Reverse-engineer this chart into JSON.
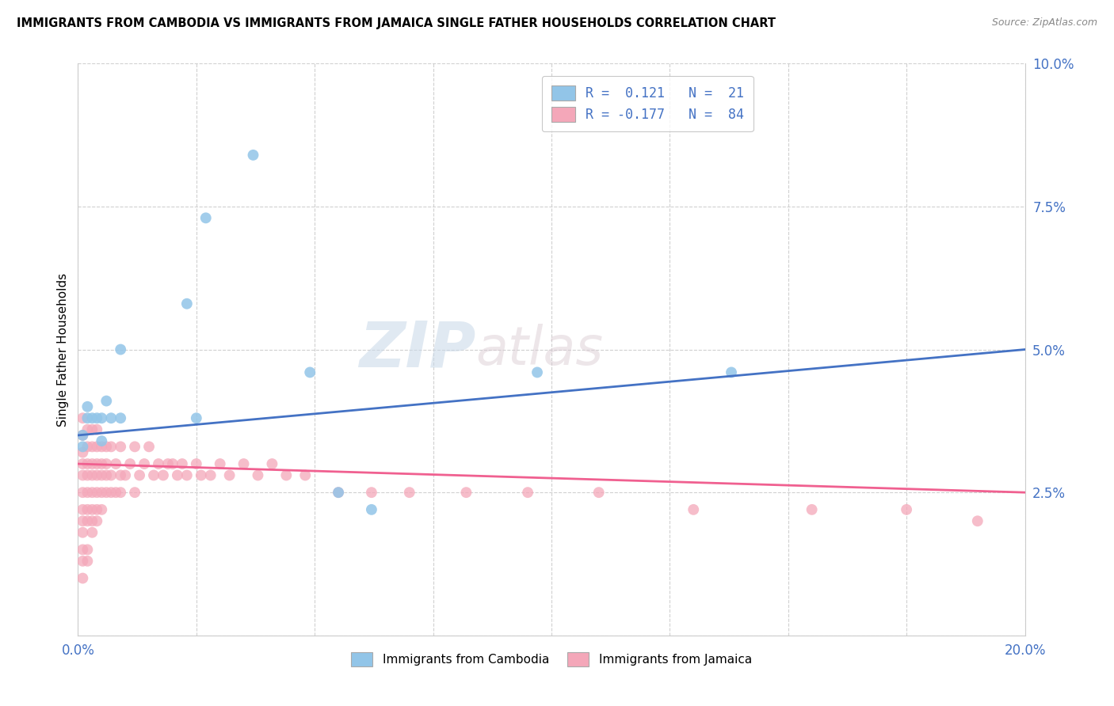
{
  "title": "IMMIGRANTS FROM CAMBODIA VS IMMIGRANTS FROM JAMAICA SINGLE FATHER HOUSEHOLDS CORRELATION CHART",
  "source": "Source: ZipAtlas.com",
  "ylabel": "Single Father Households",
  "xlim": [
    0.0,
    0.2
  ],
  "ylim": [
    0.0,
    0.1
  ],
  "xticks": [
    0.0,
    0.025,
    0.05,
    0.075,
    0.1,
    0.125,
    0.15,
    0.175,
    0.2
  ],
  "yticks": [
    0.0,
    0.025,
    0.05,
    0.075,
    0.1
  ],
  "color_cambodia": "#92c5e8",
  "color_jamaica": "#f4a7b9",
  "trendline_cambodia": "#4472c4",
  "trendline_jamaica": "#f06090",
  "watermark_zip": "ZIP",
  "watermark_atlas": "atlas",
  "background_color": "#ffffff",
  "grid_color": "#d0d0d0",
  "fig_width": 14.06,
  "fig_height": 8.92,
  "cambodia_x": [
    0.001,
    0.001,
    0.002,
    0.002,
    0.003,
    0.004,
    0.005,
    0.005,
    0.006,
    0.007,
    0.009,
    0.009,
    0.023,
    0.027,
    0.037,
    0.049,
    0.055,
    0.062,
    0.097,
    0.138,
    0.025
  ],
  "cambodia_y": [
    0.033,
    0.035,
    0.038,
    0.04,
    0.038,
    0.038,
    0.034,
    0.038,
    0.041,
    0.038,
    0.05,
    0.038,
    0.058,
    0.073,
    0.084,
    0.046,
    0.025,
    0.022,
    0.046,
    0.046,
    0.038
  ],
  "jamaica_x": [
    0.001,
    0.001,
    0.001,
    0.001,
    0.001,
    0.001,
    0.001,
    0.001,
    0.001,
    0.001,
    0.001,
    0.001,
    0.002,
    0.002,
    0.002,
    0.002,
    0.002,
    0.002,
    0.002,
    0.002,
    0.002,
    0.003,
    0.003,
    0.003,
    0.003,
    0.003,
    0.003,
    0.003,
    0.003,
    0.004,
    0.004,
    0.004,
    0.004,
    0.004,
    0.004,
    0.004,
    0.005,
    0.005,
    0.005,
    0.005,
    0.005,
    0.006,
    0.006,
    0.006,
    0.006,
    0.007,
    0.007,
    0.007,
    0.008,
    0.008,
    0.009,
    0.009,
    0.009,
    0.01,
    0.011,
    0.012,
    0.012,
    0.013,
    0.014,
    0.015,
    0.016,
    0.017,
    0.018,
    0.019,
    0.02,
    0.021,
    0.022,
    0.023,
    0.025,
    0.026,
    0.028,
    0.03,
    0.032,
    0.035,
    0.038,
    0.041,
    0.044,
    0.048,
    0.055,
    0.062,
    0.07,
    0.082,
    0.095,
    0.11,
    0.13,
    0.155,
    0.175,
    0.19
  ],
  "jamaica_y": [
    0.01,
    0.013,
    0.015,
    0.018,
    0.02,
    0.022,
    0.025,
    0.028,
    0.03,
    0.032,
    0.035,
    0.038,
    0.013,
    0.015,
    0.02,
    0.022,
    0.025,
    0.028,
    0.03,
    0.033,
    0.036,
    0.018,
    0.02,
    0.022,
    0.025,
    0.028,
    0.03,
    0.033,
    0.036,
    0.02,
    0.022,
    0.025,
    0.028,
    0.03,
    0.033,
    0.036,
    0.022,
    0.025,
    0.028,
    0.03,
    0.033,
    0.025,
    0.028,
    0.03,
    0.033,
    0.025,
    0.028,
    0.033,
    0.025,
    0.03,
    0.025,
    0.028,
    0.033,
    0.028,
    0.03,
    0.025,
    0.033,
    0.028,
    0.03,
    0.033,
    0.028,
    0.03,
    0.028,
    0.03,
    0.03,
    0.028,
    0.03,
    0.028,
    0.03,
    0.028,
    0.028,
    0.03,
    0.028,
    0.03,
    0.028,
    0.03,
    0.028,
    0.028,
    0.025,
    0.025,
    0.025,
    0.025,
    0.025,
    0.025,
    0.022,
    0.022,
    0.022,
    0.02
  ],
  "cam_trend_x0": 0.0,
  "cam_trend_y0": 0.035,
  "cam_trend_x1": 0.2,
  "cam_trend_y1": 0.05,
  "jam_trend_x0": 0.0,
  "jam_trend_y0": 0.03,
  "jam_trend_x1": 0.2,
  "jam_trend_y1": 0.025
}
